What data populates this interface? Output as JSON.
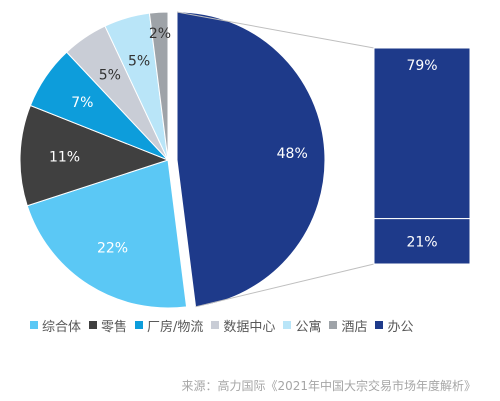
{
  "chart_data": {
    "type": "pie",
    "categories": [
      "综合体",
      "零售",
      "厂房/物流",
      "数据中心",
      "公寓",
      "酒店",
      "办公"
    ],
    "values": [
      22,
      11,
      7,
      5,
      5,
      2,
      48
    ],
    "value_labels": [
      "22%",
      "11%",
      "7%",
      "5%",
      "5%",
      "2%",
      "48%"
    ],
    "colors": [
      "#5bc8f5",
      "#404040",
      "#0d9ddb",
      "#c9cdd6",
      "#b9e5f8",
      "#9ea3a8",
      "#1e3a8a"
    ],
    "exploded_category": "办公",
    "breakdown": {
      "type": "stacked-bar",
      "values": [
        79,
        21
      ],
      "value_labels": [
        "79%",
        "21%"
      ],
      "color": "#1e3a8a"
    },
    "legend_position": "bottom"
  },
  "source": "来源：高力国际《2021年中国大宗交易市场年度解析》"
}
